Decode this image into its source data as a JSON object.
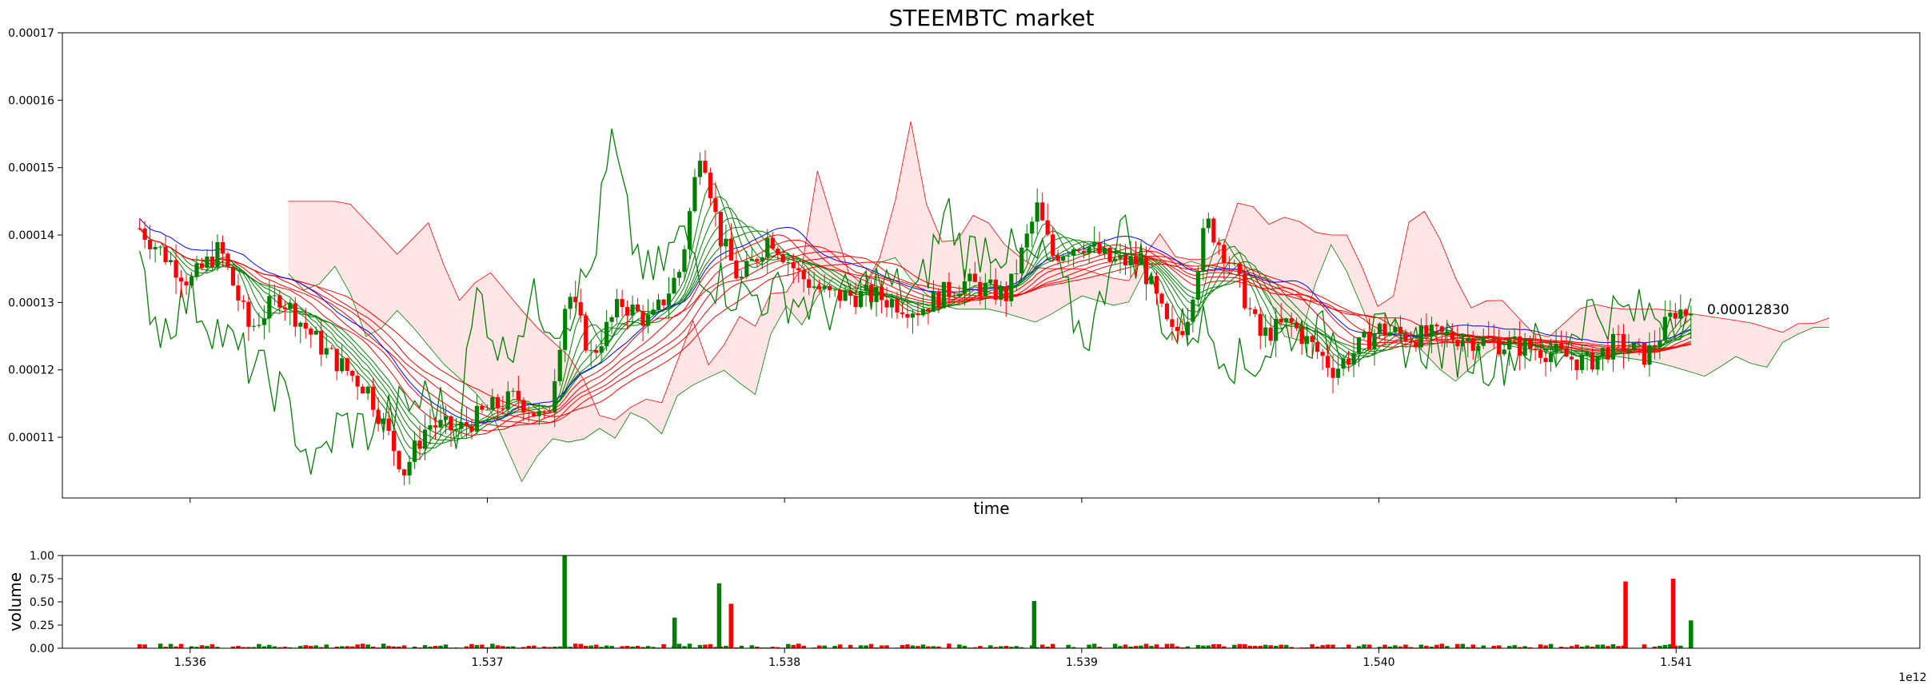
{
  "chart_data": [
    {
      "type": "candlestick",
      "title": "STEEMBTC market",
      "xlabel": "time",
      "ylabel": "",
      "x_scale_note": "1e12",
      "ylim": [
        0.000101,
        0.00017
      ],
      "xlim": [
        1535.57,
        1541.82
      ],
      "yticks": [
        "0.00011",
        "0.00012",
        "0.00013",
        "0.00014",
        "0.00015",
        "0.00016",
        "0.00017"
      ],
      "last_price_label": "0.00012830",
      "last_price": 0.0001283,
      "colors": {
        "up": "#008000",
        "down": "#ff0000",
        "ma_blue": "#0000ff",
        "cloud_green": "#008000",
        "cloud_red": "#ff0000"
      },
      "candles_keypoints": {
        "time": [
          1535.83,
          1536.0,
          1536.1,
          1536.2,
          1536.3,
          1536.45,
          1536.6,
          1536.72,
          1536.8,
          1536.9,
          1537.0,
          1537.1,
          1537.2,
          1537.27,
          1537.35,
          1537.45,
          1537.55,
          1537.65,
          1537.72,
          1537.78,
          1537.85,
          1537.95,
          1538.05,
          1538.15,
          1538.3,
          1538.45,
          1538.6,
          1538.75,
          1538.85,
          1538.9,
          1539.0,
          1539.1,
          1539.2,
          1539.3,
          1539.35,
          1539.42,
          1539.5,
          1539.6,
          1539.7,
          1539.85,
          1540.0,
          1540.1,
          1540.25,
          1540.4,
          1540.55,
          1540.7,
          1540.8,
          1540.9,
          1541.0,
          1541.05
        ],
        "close": [
          0.000141,
          0.000133,
          0.000138,
          0.000126,
          0.000131,
          0.000123,
          0.000117,
          0.000105,
          0.000112,
          0.000111,
          0.000114,
          0.000116,
          0.000112,
          0.000132,
          0.000122,
          0.00013,
          0.000127,
          0.000135,
          0.000154,
          0.00014,
          0.000133,
          0.00014,
          0.000134,
          0.000131,
          0.000131,
          0.000129,
          0.000133,
          0.000131,
          0.000144,
          0.000137,
          0.000139,
          0.000136,
          0.000136,
          0.000125,
          0.000127,
          0.000142,
          0.000136,
          0.000125,
          0.000127,
          0.00012,
          0.000126,
          0.000125,
          0.000125,
          0.000124,
          0.000123,
          0.000121,
          0.000124,
          0.000122,
          0.000129,
          0.0001283
        ]
      },
      "sub_chart": {
        "ylabel": "volume",
        "ylim": [
          0,
          1.0
        ],
        "yticks": [
          "0.00",
          "0.25",
          "0.50",
          "0.75",
          "1.00"
        ],
        "xticks": [
          "1.536",
          "1.537",
          "1.538",
          "1.539",
          "1.540",
          "1.541"
        ],
        "x_scale_note": "1e12",
        "volume_peaks": [
          {
            "time": 1537.26,
            "value": 1.0,
            "dir": "up"
          },
          {
            "time": 1537.63,
            "value": 0.33,
            "dir": "up"
          },
          {
            "time": 1537.78,
            "value": 0.7,
            "dir": "up"
          },
          {
            "time": 1537.82,
            "value": 0.48,
            "dir": "down"
          },
          {
            "time": 1538.84,
            "value": 0.51,
            "dir": "up"
          },
          {
            "time": 1540.83,
            "value": 0.72,
            "dir": "down"
          },
          {
            "time": 1540.99,
            "value": 0.75,
            "dir": "down"
          },
          {
            "time": 1541.05,
            "value": 0.3,
            "dir": "up"
          }
        ]
      }
    }
  ]
}
